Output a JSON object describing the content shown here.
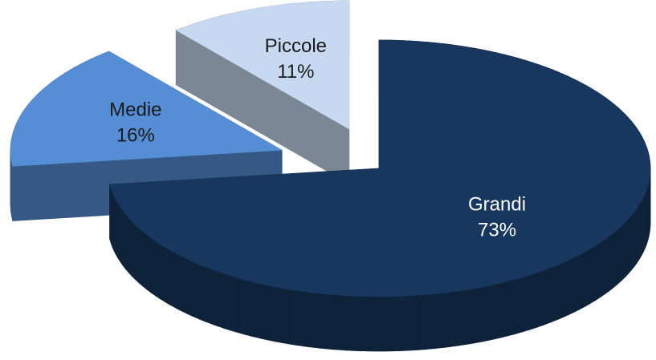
{
  "chart_data": {
    "type": "pie",
    "categories": [
      "Grandi",
      "Medie",
      "Piccole"
    ],
    "values": [
      73,
      16,
      11
    ],
    "value_labels": [
      "73%",
      "16%",
      "11%"
    ],
    "colors": [
      "#17375e",
      "#558ed5",
      "#c6d9f1"
    ],
    "three_d": true,
    "exploded": true
  }
}
